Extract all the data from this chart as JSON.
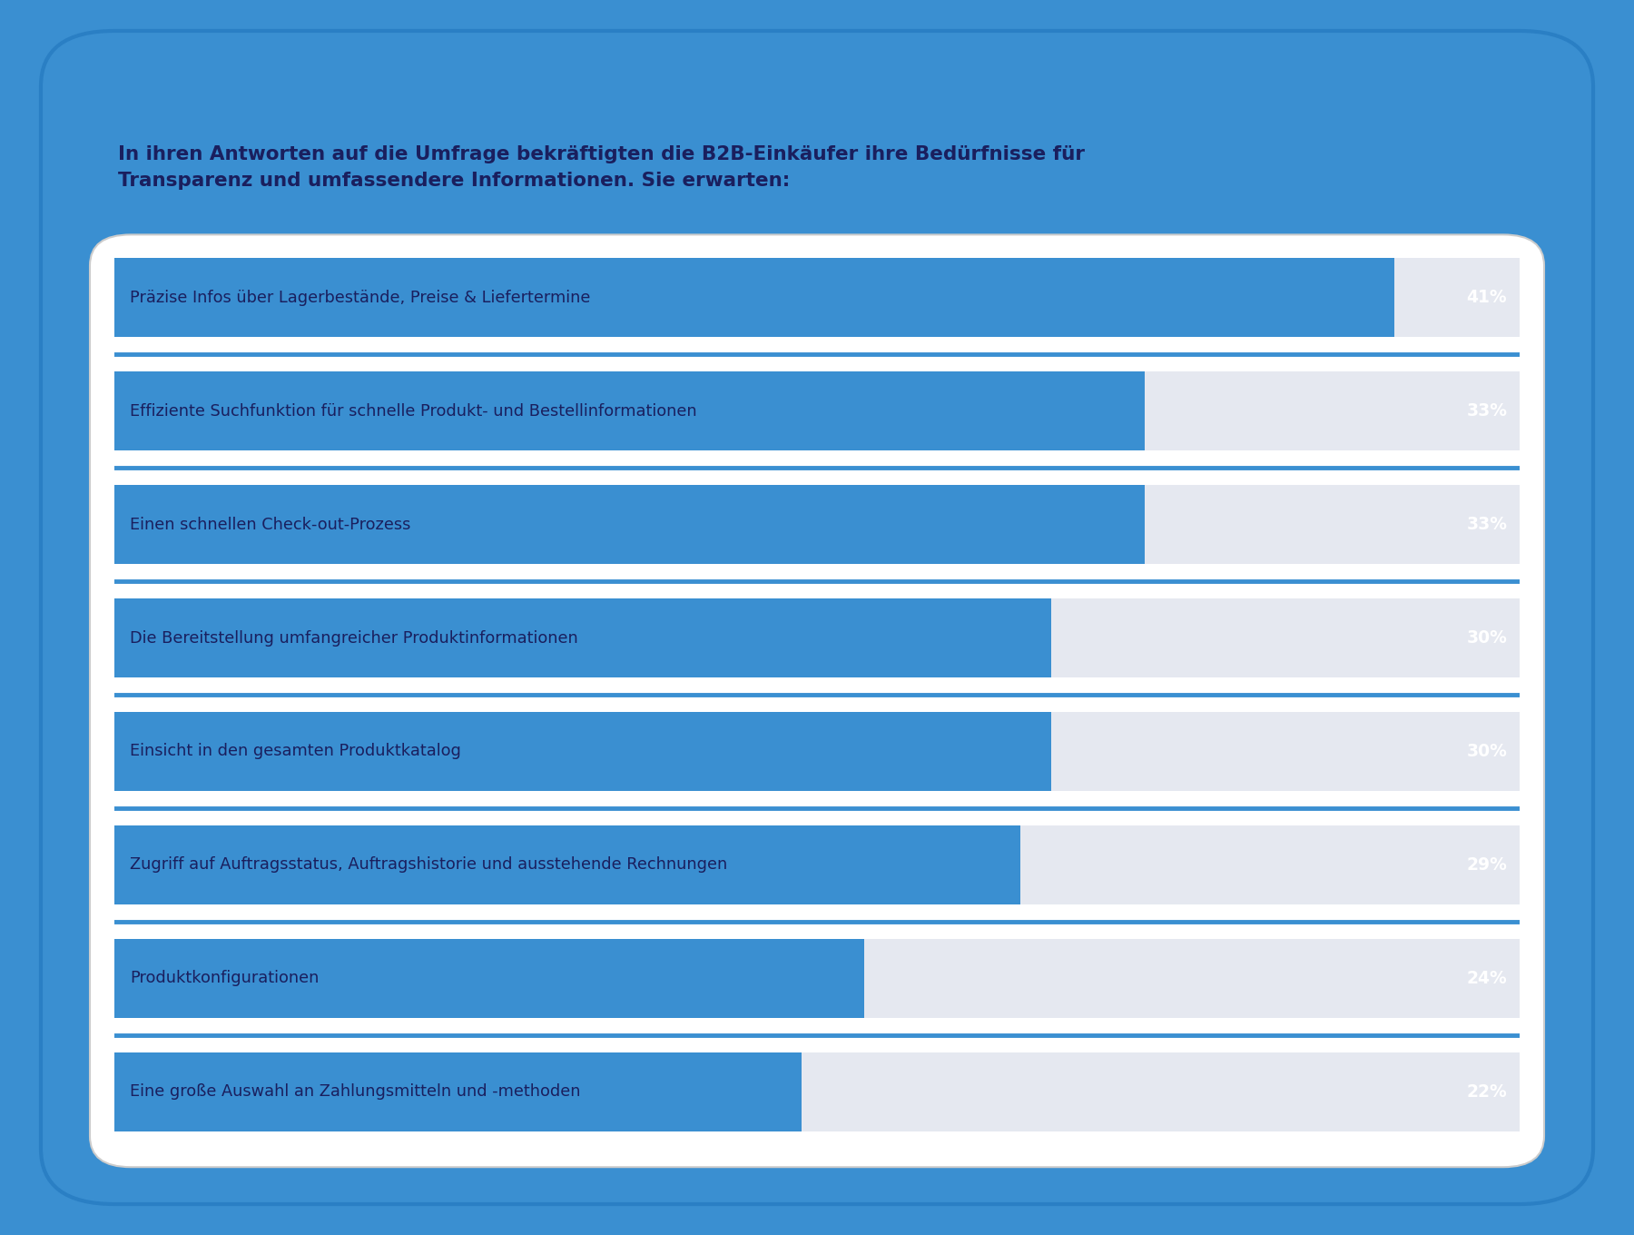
{
  "title_line1": "In ihren Antworten auf die Umfrage bekräftigten die B2B-Einkäufer ihre Bedürfnisse für",
  "title_line2": "Transparenz und umfassendere Informationen. Sie erwarten:",
  "categories": [
    "Präzise Infos über Lagerbestände, Preise & Liefertermine",
    "Effiziente Suchfunktion für schnelle Produkt- und Bestellinformationen",
    "Einen schnellen Check-out-Prozess",
    "Die Bereitstellung umfangreicher Produktinformationen",
    "Einsicht in den gesamten Produktkatalog",
    "Zugriff auf Auftragsstatus, Auftragshistorie und ausstehende Rechnungen",
    "Produktkonfigurationen",
    "Eine große Auswahl an Zahlungsmitteln und -methoden"
  ],
  "values": [
    41,
    33,
    33,
    30,
    30,
    29,
    24,
    22
  ],
  "bar_color": "#3a8fd1",
  "background_outer": "#3a8fd1",
  "background_inner": "#ffffff",
  "bar_bg_color": "#e5e8f0",
  "separator_color": "#3a8fd1",
  "title_color": "#1a1f5e",
  "label_color": "#1a1f5e",
  "value_color": "#ffffff",
  "max_value": 45,
  "figure_bg": "#3a8fd1",
  "card_shadow": "#cccccc"
}
